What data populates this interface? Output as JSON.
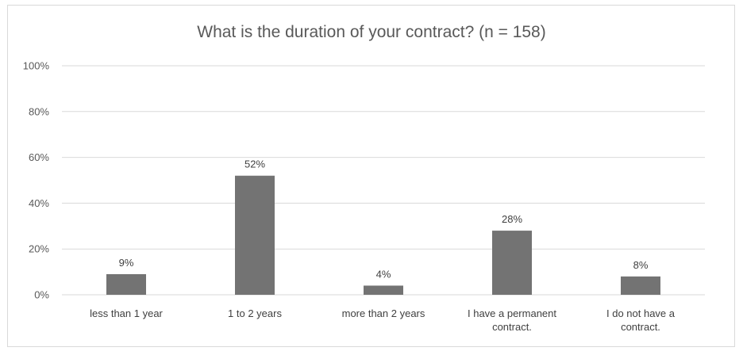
{
  "chart_data": {
    "type": "bar",
    "title": "What is the duration of your contract? (n = 158)",
    "categories": [
      [
        "less than 1 year"
      ],
      [
        "1 to 2 years"
      ],
      [
        "more than 2 years"
      ],
      [
        "I have a permanent",
        "contract."
      ],
      [
        "I do not have a",
        "contract."
      ]
    ],
    "values": [
      9,
      52,
      4,
      28,
      8
    ],
    "data_labels": [
      "9%",
      "52%",
      "4%",
      "28%",
      "8%"
    ],
    "ylim": [
      0,
      100
    ],
    "yticks": [
      0,
      20,
      40,
      60,
      80,
      100
    ],
    "ytick_labels": [
      "0%",
      "20%",
      "40%",
      "60%",
      "80%",
      "100%"
    ],
    "grid": true,
    "legend": "none",
    "bar_color": "#737373",
    "grid_color": "#d9d9d9"
  }
}
